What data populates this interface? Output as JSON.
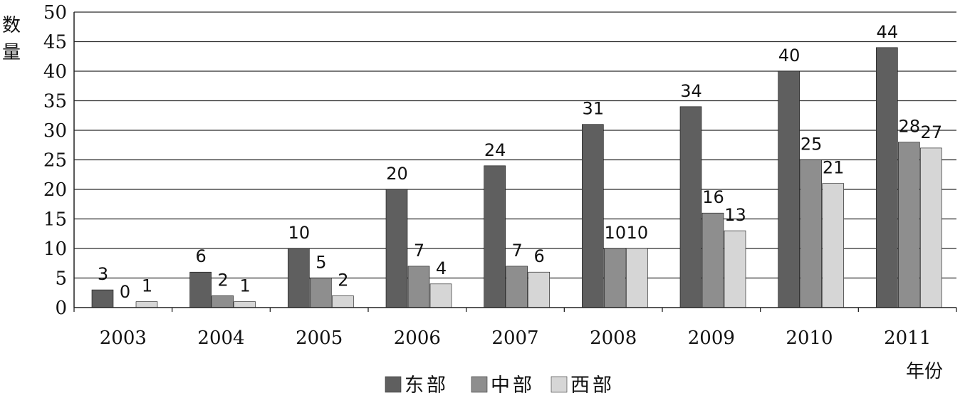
{
  "chart_data": {
    "type": "bar",
    "categories": [
      "2003",
      "2004",
      "2005",
      "2006",
      "2007",
      "2008",
      "2009",
      "2010",
      "2011"
    ],
    "series": [
      {
        "name": "东部",
        "values": [
          3,
          6,
          10,
          20,
          24,
          31,
          34,
          40,
          44
        ],
        "color": "#5f5f5f"
      },
      {
        "name": "中部",
        "values": [
          0,
          2,
          5,
          7,
          7,
          10,
          16,
          25,
          28
        ],
        "color": "#8e8e8e"
      },
      {
        "name": "西部",
        "values": [
          1,
          1,
          2,
          4,
          6,
          10,
          13,
          21,
          27
        ],
        "color": "#d6d6d6"
      }
    ],
    "ylabel": "数量",
    "xlabel": "年份",
    "ylim": [
      0,
      50
    ],
    "yticks": [
      0,
      5,
      10,
      15,
      20,
      25,
      30,
      35,
      40,
      45,
      50
    ],
    "grid": true,
    "legend": "bottom"
  }
}
